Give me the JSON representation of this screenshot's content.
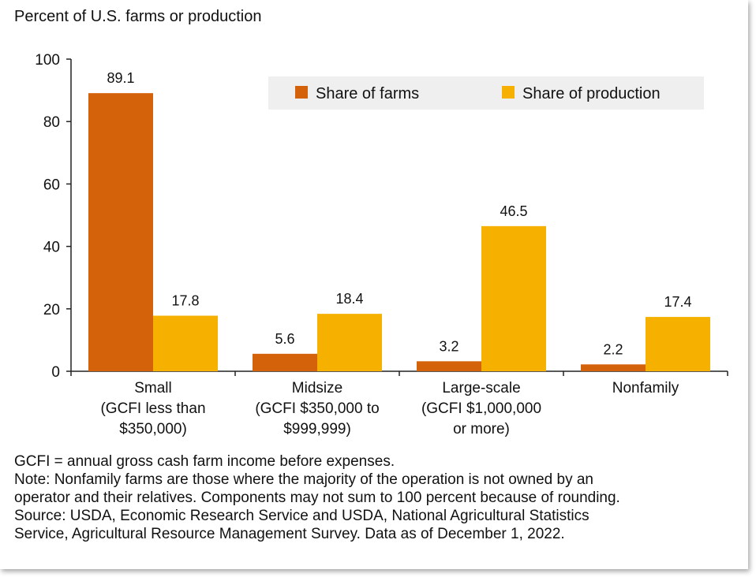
{
  "chart_data": {
    "type": "bar",
    "ylabel": "Percent of U.S. farms or production",
    "ylim": [
      0,
      100
    ],
    "yticks": [
      0,
      20,
      40,
      60,
      80,
      100
    ],
    "categories": [
      [
        "Small",
        "(GCFI less than",
        "$350,000)"
      ],
      [
        "Midsize",
        "(GCFI $350,000 to",
        "$999,999)"
      ],
      [
        "Large-scale",
        "(GCFI $1,000,000",
        "or more)"
      ],
      [
        "Nonfamily"
      ]
    ],
    "series": [
      {
        "name": "Share of farms",
        "color": "#d4620a",
        "values": [
          89.1,
          5.6,
          3.2,
          2.2
        ]
      },
      {
        "name": "Share of production",
        "color": "#f5b000",
        "values": [
          17.8,
          18.4,
          46.5,
          17.4
        ]
      }
    ],
    "legend_position": "top-right",
    "grid": false
  },
  "notes": [
    "GCFI = annual gross cash farm income before expenses.",
    "Note: Nonfamily farms are those where the majority of the operation is not owned by an",
    "operator and their relatives. Components may not sum to 100 percent because of rounding.",
    "Source: USDA, Economic Research Service and USDA, National Agricultural Statistics",
    "Service, Agricultural Resource Management Survey. Data as of December 1, 2022."
  ]
}
